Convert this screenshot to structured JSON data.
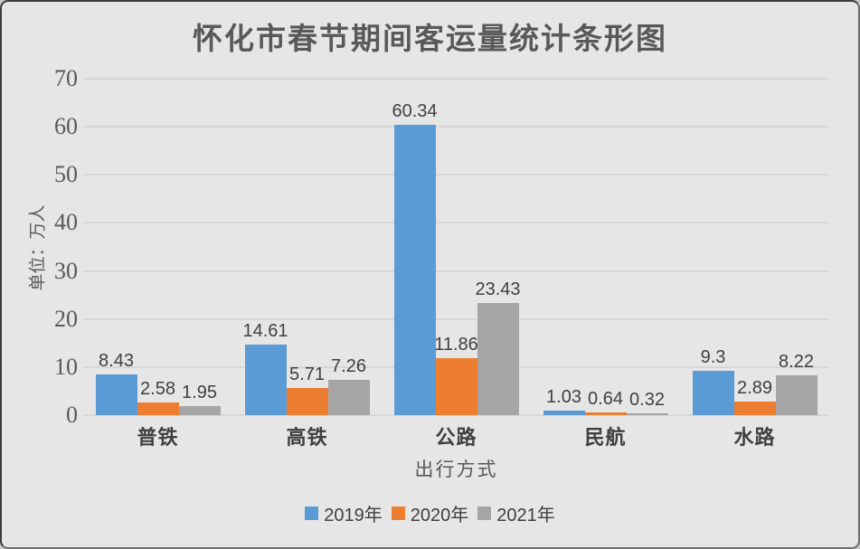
{
  "chart_data": {
    "type": "bar",
    "title": "怀化市春节期间客运量统计条形图",
    "xlabel": "出行方式",
    "ylabel": "单位：万人",
    "categories": [
      "普铁",
      "高铁",
      "公路",
      "民航",
      "水路"
    ],
    "series": [
      {
        "name": "2019年",
        "color": "#5B9BD5",
        "values": [
          8.43,
          14.61,
          60.34,
          1.03,
          9.3
        ]
      },
      {
        "name": "2020年",
        "color": "#ED7D31",
        "values": [
          2.58,
          5.71,
          11.86,
          0.64,
          2.89
        ]
      },
      {
        "name": "2021年",
        "color": "#A5A5A5",
        "values": [
          1.95,
          7.26,
          23.43,
          0.32,
          8.22
        ]
      }
    ],
    "ylim": [
      0,
      70
    ],
    "ytick_step": 10,
    "yticks": [
      0,
      10,
      20,
      30,
      40,
      50,
      60,
      70
    ],
    "grid": true,
    "data_labels": true,
    "legend_position": "bottom"
  },
  "colors": {
    "background": "#e7e6e6",
    "gridline": "#d8d7d7",
    "title_text": "#595959",
    "axis_text": "#595959",
    "label_text": "#404040"
  }
}
